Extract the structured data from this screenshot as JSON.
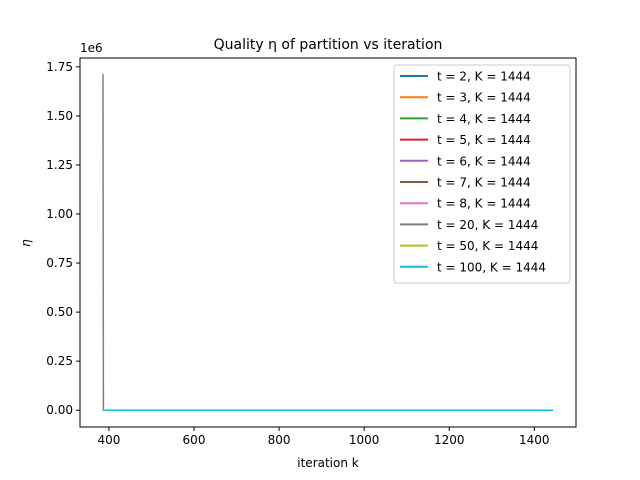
{
  "chart_data": {
    "type": "line",
    "title": "Quality η of partition vs iteration",
    "xlabel": "iteration k",
    "ylabel": "η",
    "y_offset_label": "1e6",
    "xlim": [
      332,
      1498
    ],
    "ylim": [
      -0.0855,
      1.795
    ],
    "x_ticks": [
      400,
      600,
      800,
      1000,
      1200,
      1400
    ],
    "x_tick_labels": [
      "400",
      "600",
      "800",
      "1000",
      "1200",
      "1400"
    ],
    "y_ticks": [
      0.0,
      0.25,
      0.5,
      0.75,
      1.0,
      1.25,
      1.5,
      1.75
    ],
    "y_tick_labels": [
      "0.00",
      "0.25",
      "0.50",
      "0.75",
      "1.00",
      "1.25",
      "1.50",
      "1.75"
    ],
    "legend_position": "top-right",
    "grid": false,
    "series": [
      {
        "name": "t = 2, K = 1444",
        "color": "#1f77b4",
        "x": [
          385,
          1444
        ],
        "y": [
          0,
          0
        ]
      },
      {
        "name": "t = 3, K = 1444",
        "color": "#ff7f0e",
        "x": [
          385,
          1444
        ],
        "y": [
          0,
          0
        ]
      },
      {
        "name": "t = 4, K = 1444",
        "color": "#2ca02c",
        "x": [
          385,
          1444
        ],
        "y": [
          0,
          0
        ]
      },
      {
        "name": "t = 5, K = 1444",
        "color": "#d62728",
        "x": [
          385,
          1444
        ],
        "y": [
          0,
          0
        ]
      },
      {
        "name": "t = 6, K = 1444",
        "color": "#9467bd",
        "x": [
          385,
          1444
        ],
        "y": [
          0,
          0
        ]
      },
      {
        "name": "t = 7, K = 1444",
        "color": "#8c564b",
        "x": [
          385,
          1444
        ],
        "y": [
          0,
          0
        ]
      },
      {
        "name": "t = 8, K = 1444",
        "color": "#e377c2",
        "x": [
          385,
          1444
        ],
        "y": [
          0,
          0
        ]
      },
      {
        "name": "t = 20, K = 1444",
        "color": "#7f7f7f",
        "x": [
          385,
          386,
          387,
          1444
        ],
        "y": [
          1.71,
          1.71,
          0,
          0
        ]
      },
      {
        "name": "t = 50, K = 1444",
        "color": "#bcbd22",
        "x": [
          385,
          1444
        ],
        "y": [
          0,
          0
        ]
      },
      {
        "name": "t = 100, K = 1444",
        "color": "#17becf",
        "x": [
          385,
          1444
        ],
        "y": [
          0,
          0
        ]
      }
    ]
  }
}
